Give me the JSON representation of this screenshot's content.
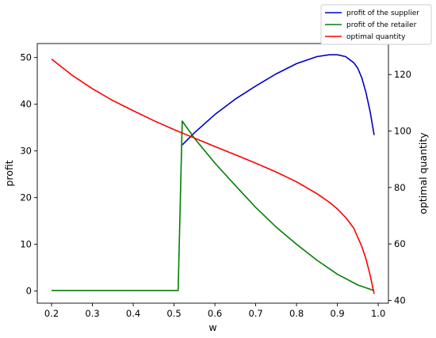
{
  "chart_data": {
    "type": "line",
    "title": "",
    "xlabel": "w",
    "ylabel_left": "profit",
    "ylabel_right": "optimal quantity",
    "xlim": [
      0.165,
      1.025
    ],
    "ylim_left": [
      -2.6,
      53.0
    ],
    "ylim_right": [
      39.0,
      131.0
    ],
    "xticks": [
      0.2,
      0.3,
      0.4,
      0.5,
      0.6,
      0.7,
      0.8,
      0.9,
      1.0
    ],
    "xtick_labels": [
      "0.2",
      "0.3",
      "0.4",
      "0.5",
      "0.6",
      "0.7",
      "0.8",
      "0.9",
      "1.0"
    ],
    "yticks_left": [
      0,
      10,
      20,
      30,
      40,
      50
    ],
    "ytick_labels_left": [
      "0",
      "10",
      "20",
      "30",
      "40",
      "50"
    ],
    "yticks_right": [
      40,
      60,
      80,
      100,
      120
    ],
    "ytick_labels_right": [
      "40",
      "60",
      "80",
      "100",
      "120"
    ],
    "grid": false,
    "legend_position": "above-top-right",
    "series": [
      {
        "name": "profit of the supplier",
        "color": "#0000cc",
        "axis": "left",
        "x": [
          0.52,
          0.55,
          0.6,
          0.65,
          0.7,
          0.75,
          0.8,
          0.85,
          0.88,
          0.9,
          0.92,
          0.94,
          0.95,
          0.96,
          0.97,
          0.98,
          0.99
        ],
        "y": [
          31.3,
          33.9,
          37.8,
          41.1,
          43.9,
          46.5,
          48.7,
          50.2,
          50.6,
          50.6,
          50.2,
          48.9,
          47.7,
          45.6,
          42.5,
          38.5,
          33.4
        ]
      },
      {
        "name": "profit of the retailer",
        "color": "#008000",
        "axis": "left",
        "x": [
          0.2,
          0.3,
          0.4,
          0.5,
          0.51,
          0.52,
          0.55,
          0.6,
          0.65,
          0.7,
          0.75,
          0.8,
          0.85,
          0.9,
          0.95,
          0.99
        ],
        "y": [
          0.1,
          0.1,
          0.1,
          0.1,
          0.1,
          36.4,
          32.7,
          27.4,
          22.6,
          17.9,
          13.7,
          10.0,
          6.6,
          3.6,
          1.3,
          0.1
        ]
      },
      {
        "name": "optimal quantity",
        "color": "#ff0000",
        "axis": "right",
        "x": [
          0.2,
          0.25,
          0.3,
          0.35,
          0.4,
          0.45,
          0.5,
          0.55,
          0.6,
          0.65,
          0.7,
          0.75,
          0.8,
          0.85,
          0.88,
          0.9,
          0.92,
          0.94,
          0.96,
          0.97,
          0.98,
          0.99
        ],
        "y": [
          125.5,
          119.8,
          115.0,
          110.8,
          107.2,
          103.7,
          100.5,
          97.5,
          94.5,
          91.6,
          88.6,
          85.5,
          82.0,
          77.8,
          74.8,
          72.4,
          69.4,
          65.6,
          59.0,
          54.7,
          49.0,
          42.3
        ]
      }
    ]
  }
}
